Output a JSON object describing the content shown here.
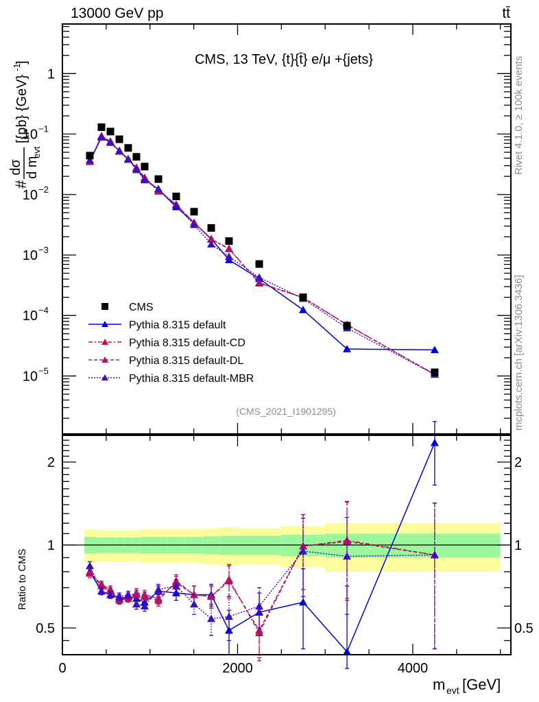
{
  "header": {
    "left": "13000 GeV pp",
    "right": "tt̄"
  },
  "side_labels": {
    "upper": "Rivet 4.1.0, ≥ 100k events",
    "lower": "mcplots.cern.ch [arXiv:1306.3436]"
  },
  "chart_data": [
    {
      "type": "scatter",
      "panel": "main",
      "title": "CMS, 13 TeV, {t}{t̄} e/μ +{jets}",
      "subtitle": "(CMS_2021_I1901295)",
      "xlabel": "m_evt [GeV]",
      "ylabel": "#dσ/d m_evt [{pb} {GeV}^-1]",
      "ylabel_parts": {
        "prefix": "#",
        "num": "dσ",
        "den": "d m",
        "den_sub": "evt",
        "unit": "[{pb} {GeV}",
        "unit_sup": "-1",
        "unit_close": "]"
      },
      "yscale": "log",
      "xlim": [
        0,
        5120
      ],
      "ylim": [
        1.1e-06,
        6.6
      ],
      "yticks": [
        {
          "v": 1,
          "label": "1",
          "sup": ""
        },
        {
          "v": 0.1,
          "label": "10",
          "sup": "−1"
        },
        {
          "v": 0.01,
          "label": "10",
          "sup": "−2"
        },
        {
          "v": 0.001,
          "label": "10",
          "sup": "−3"
        },
        {
          "v": 0.0001,
          "label": "10",
          "sup": "−4"
        },
        {
          "v": 1e-05,
          "label": "10",
          "sup": "−5"
        }
      ],
      "legend_position": "lower-left",
      "x": [
        313,
        446,
        548,
        650,
        751,
        845,
        939,
        1096,
        1299,
        1503,
        1699,
        1902,
        2247,
        2748,
        3249,
        4250
      ],
      "series": [
        {
          "name": "CMS",
          "style": "data",
          "color": "#000000",
          "values": [
            0.044,
            0.13,
            0.11,
            0.082,
            0.059,
            0.042,
            0.029,
            0.018,
            0.0093,
            0.0052,
            0.0028,
            0.0017,
            0.00071,
            0.0002,
            6.8e-05,
            1.15e-05
          ]
        },
        {
          "name": "Pythia 8.315 default",
          "style": "solid",
          "color": "#0000e0",
          "values": [
            0.0352,
            0.0884,
            0.0726,
            0.0525,
            0.0384,
            0.0269,
            0.018,
            0.0122,
            0.00623,
            0.00343,
            0.00185,
            0.00083,
            0.000405,
            0.000124,
            2.79e-05,
            2.7e-05
          ]
        },
        {
          "name": "Pythia 8.315 default-CD",
          "style": "dashdot",
          "color": "#c0103c",
          "values": [
            0.0348,
            0.0936,
            0.0759,
            0.0517,
            0.0378,
            0.0277,
            0.0189,
            0.0113,
            0.00688,
            0.00343,
            0.00182,
            0.00128,
            0.000341,
            0.000198,
            7.07e-05,
            1.06e-05
          ]
        },
        {
          "name": "Pythia 8.315 default-DL",
          "style": "dashed",
          "color": "#b0106e",
          "values": [
            0.0352,
            0.0923,
            0.0748,
            0.0517,
            0.0384,
            0.0281,
            0.0191,
            0.0115,
            0.00679,
            0.00343,
            0.00182,
            0.00126,
            0.000348,
            0.000198,
            7e-05,
            1.06e-05
          ]
        },
        {
          "name": "Pythia 8.315 default-MBR",
          "style": "dotted",
          "color": "#3a10c0",
          "values": [
            0.037,
            0.0884,
            0.0726,
            0.0533,
            0.0389,
            0.0256,
            0.0174,
            0.0124,
            0.0066,
            0.00317,
            0.00151,
            0.00094,
            0.000426,
            0.00019,
            6.19e-05,
            1.06e-05
          ]
        }
      ]
    },
    {
      "type": "scatter",
      "panel": "ratio",
      "ylabel": "Ratio to CMS",
      "xlabel": "m_evt [GeV]",
      "xlabel_parts": {
        "main": "m",
        "sub": "evt",
        "unit": " [GeV]"
      },
      "yscale": "log",
      "xlim": [
        0,
        5120
      ],
      "ylim": [
        0.4,
        2.5
      ],
      "xticks": [
        {
          "v": 0,
          "label": "0"
        },
        {
          "v": 2000,
          "label": "2000"
        },
        {
          "v": 4000,
          "label": "4000"
        }
      ],
      "yticks": [
        {
          "v": 0.5,
          "label": "0.5"
        },
        {
          "v": 1,
          "label": "1"
        },
        {
          "v": 2,
          "label": "2"
        }
      ],
      "reference_line": 1,
      "band_edges": [
        250,
        380,
        500,
        600,
        700,
        800,
        890,
        990,
        1200,
        1400,
        1600,
        1800,
        2000,
        2500,
        3000,
        3500,
        5000
      ],
      "band_inner": [
        0.07,
        0.065,
        0.065,
        0.065,
        0.065,
        0.065,
        0.07,
        0.07,
        0.07,
        0.07,
        0.075,
        0.08,
        0.08,
        0.09,
        0.1,
        0.1
      ],
      "band_outer": [
        0.14,
        0.13,
        0.13,
        0.13,
        0.13,
        0.13,
        0.14,
        0.14,
        0.14,
        0.14,
        0.15,
        0.16,
        0.15,
        0.17,
        0.2,
        0.2
      ],
      "x": [
        313,
        446,
        548,
        650,
        751,
        845,
        939,
        1096,
        1299,
        1503,
        1699,
        1902,
        2247,
        2748,
        3249,
        4250
      ],
      "series": [
        {
          "name": "Pythia 8.315 default",
          "style": "solid",
          "color": "#0000e0",
          "values": [
            0.8,
            0.68,
            0.66,
            0.64,
            0.65,
            0.64,
            0.62,
            0.68,
            0.67,
            0.66,
            0.66,
            0.49,
            0.57,
            0.62,
            0.41,
            2.35
          ],
          "errors": [
            0.03,
            0.02,
            0.02,
            0.02,
            0.02,
            0.025,
            0.025,
            0.03,
            0.04,
            0.05,
            0.06,
            0.09,
            0.1,
            0.2,
            0.3,
            0.7
          ]
        },
        {
          "name": "Pythia 8.315 default-CD",
          "style": "dashdot",
          "color": "#c0103c",
          "values": [
            0.79,
            0.72,
            0.69,
            0.63,
            0.64,
            0.66,
            0.65,
            0.63,
            0.74,
            0.66,
            0.65,
            0.75,
            0.48,
            0.99,
            1.04,
            0.92
          ],
          "errors": [
            0.03,
            0.02,
            0.02,
            0.02,
            0.02,
            0.025,
            0.025,
            0.03,
            0.04,
            0.05,
            0.06,
            0.1,
            0.1,
            0.3,
            0.4,
            0.5
          ]
        },
        {
          "name": "Pythia 8.315 default-DL",
          "style": "dashed",
          "color": "#b0106e",
          "values": [
            0.8,
            0.71,
            0.68,
            0.63,
            0.65,
            0.67,
            0.66,
            0.64,
            0.73,
            0.66,
            0.65,
            0.74,
            0.49,
            0.99,
            1.03,
            0.92
          ],
          "errors": [
            0.03,
            0.02,
            0.02,
            0.02,
            0.02,
            0.025,
            0.025,
            0.03,
            0.04,
            0.05,
            0.06,
            0.1,
            0.1,
            0.3,
            0.4,
            0.5
          ]
        },
        {
          "name": "Pythia 8.315 default-MBR",
          "style": "dotted",
          "color": "#3a10c0",
          "values": [
            0.84,
            0.68,
            0.66,
            0.65,
            0.66,
            0.61,
            0.6,
            0.69,
            0.71,
            0.61,
            0.54,
            0.55,
            0.6,
            0.95,
            0.91,
            0.92
          ],
          "errors": [
            0.03,
            0.02,
            0.02,
            0.02,
            0.02,
            0.025,
            0.025,
            0.03,
            0.04,
            0.05,
            0.07,
            0.1,
            0.1,
            0.3,
            0.35,
            0.5
          ]
        }
      ]
    }
  ],
  "colors": {
    "band_inner": "#9cf79c",
    "band_outer": "#fcfc9c",
    "axis": "#000000",
    "meta_text": "#8c8c8c"
  }
}
